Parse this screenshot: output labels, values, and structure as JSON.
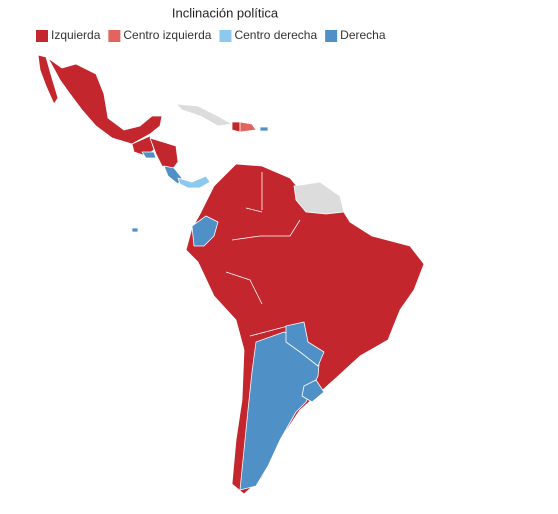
{
  "legend": {
    "title": "Inclinación política",
    "items": [
      {
        "label": "Izquierda",
        "color": "#c4262e"
      },
      {
        "label": "Centro izquierda",
        "color": "#e2645f"
      },
      {
        "label": "Centro derecha",
        "color": "#8dc8ee"
      },
      {
        "label": "Derecha",
        "color": "#4f91c6"
      }
    ]
  }
}
